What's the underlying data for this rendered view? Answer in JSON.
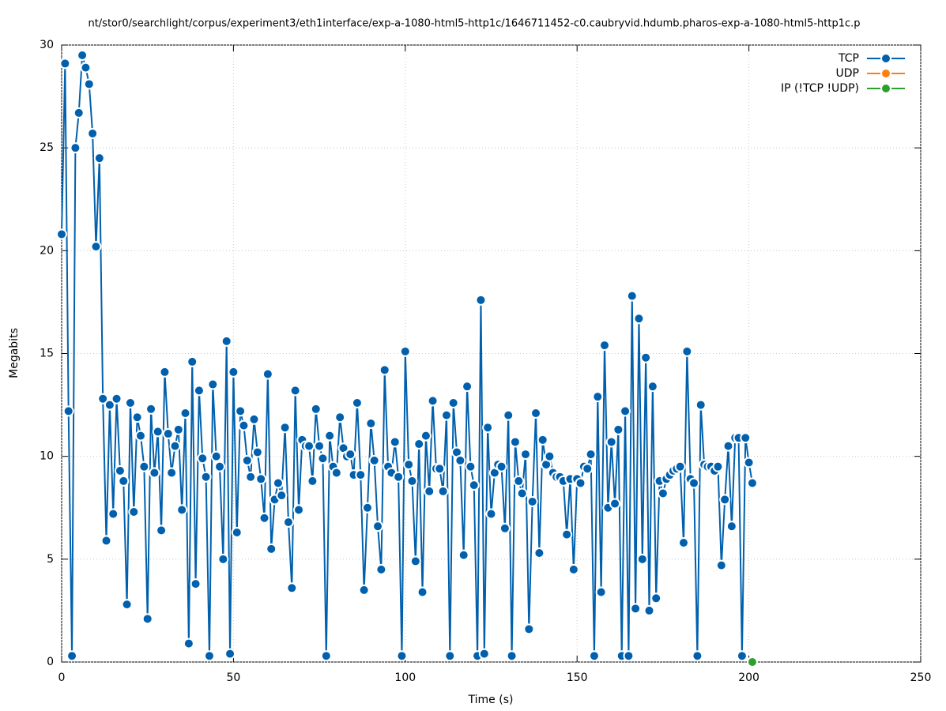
{
  "chart_data": {
    "type": "line",
    "title": "nt/stor0/searchlight/corpus/experiment3/eth1interface/exp-a-1080-html5-http1c/1646711452-c0.caubryvid.hdumb.pharos-exp-a-1080-html5-http1c.p",
    "x_label": "Time (s)",
    "y_label": "Megabits",
    "xlim": [
      0,
      250
    ],
    "xticks": [
      0,
      50,
      100,
      150,
      200,
      250
    ],
    "ylim": [
      0,
      30
    ],
    "yticks": [
      0,
      5,
      10,
      15,
      20,
      25,
      30
    ],
    "grid": true,
    "legend": "top-right",
    "series": [
      {
        "name": "TCP",
        "color": "#0060ad",
        "x": [
          0,
          1,
          2,
          3,
          4,
          5,
          6,
          7,
          8,
          9,
          10,
          11,
          12,
          13,
          14,
          15,
          16,
          17,
          18,
          19,
          20,
          21,
          22,
          23,
          24,
          25,
          26,
          27,
          28,
          29,
          30,
          31,
          32,
          33,
          34,
          35,
          36,
          37,
          38,
          39,
          40,
          41,
          42,
          43,
          44,
          45,
          46,
          47,
          48,
          49,
          50,
          51,
          52,
          53,
          54,
          55,
          56,
          57,
          58,
          59,
          60,
          61,
          62,
          63,
          64,
          65,
          66,
          67,
          68,
          69,
          70,
          71,
          72,
          73,
          74,
          75,
          76,
          77,
          78,
          79,
          80,
          81,
          82,
          83,
          84,
          85,
          86,
          87,
          88,
          89,
          90,
          91,
          92,
          93,
          94,
          95,
          96,
          97,
          98,
          99,
          100,
          101,
          102,
          103,
          104,
          105,
          106,
          107,
          108,
          109,
          110,
          111,
          112,
          113,
          114,
          115,
          116,
          117,
          118,
          119,
          120,
          121,
          122,
          123,
          124,
          125,
          126,
          127,
          128,
          129,
          130,
          131,
          132,
          133,
          134,
          135,
          136,
          137,
          138,
          139,
          140,
          141,
          142,
          143,
          144,
          145,
          146,
          147,
          148,
          149,
          150,
          151,
          152,
          153,
          154,
          155,
          156,
          157,
          158,
          159,
          160,
          161,
          162,
          163,
          164,
          165,
          166,
          167,
          168,
          169,
          170,
          171,
          172,
          173,
          174,
          175,
          176,
          177,
          178,
          179,
          180,
          181,
          182,
          183,
          184,
          185,
          186,
          187,
          188,
          189,
          190,
          191,
          192,
          193,
          194,
          195,
          196,
          197,
          198,
          199,
          200,
          201
        ],
        "values": [
          20.8,
          29.1,
          12.2,
          0.3,
          25.0,
          26.7,
          29.5,
          28.9,
          28.1,
          25.7,
          20.2,
          24.5,
          12.8,
          5.9,
          12.5,
          7.2,
          12.8,
          9.3,
          8.8,
          2.8,
          12.6,
          7.3,
          11.9,
          11.0,
          9.5,
          2.1,
          12.3,
          9.2,
          11.2,
          6.4,
          14.1,
          11.1,
          9.2,
          10.5,
          11.3,
          7.4,
          12.1,
          0.9,
          14.6,
          3.8,
          13.2,
          9.9,
          9.0,
          0.3,
          13.5,
          10.0,
          9.5,
          5.0,
          15.6,
          0.4,
          14.1,
          6.3,
          12.2,
          11.5,
          9.8,
          9.0,
          11.8,
          10.2,
          8.9,
          7.0,
          14.0,
          5.5,
          7.9,
          8.7,
          8.1,
          11.4,
          6.8,
          3.6,
          13.2,
          7.4,
          10.8,
          10.5,
          10.5,
          8.8,
          12.3,
          10.5,
          9.9,
          0.3,
          11.0,
          9.5,
          9.2,
          11.9,
          10.4,
          10.0,
          10.1,
          9.1,
          12.6,
          9.1,
          3.5,
          7.5,
          11.6,
          9.8,
          6.6,
          4.5,
          14.2,
          9.5,
          9.2,
          10.7,
          9.0,
          0.3,
          15.1,
          9.6,
          8.8,
          4.9,
          10.6,
          3.4,
          11.0,
          8.3,
          12.7,
          9.4,
          9.4,
          8.3,
          12.0,
          0.3,
          12.6,
          10.2,
          9.8,
          5.2,
          13.4,
          9.5,
          8.6,
          0.3,
          17.6,
          0.4,
          11.4,
          7.2,
          9.2,
          9.6,
          9.5,
          6.5,
          12.0,
          0.3,
          10.7,
          8.8,
          8.2,
          10.1,
          1.6,
          7.8,
          12.1,
          5.3,
          10.8,
          9.6,
          10.0,
          9.2,
          9.0,
          9.0,
          8.8,
          6.2,
          8.9,
          4.5,
          8.9,
          8.7,
          9.5,
          9.4,
          10.1,
          0.3,
          12.9,
          3.4,
          15.4,
          7.5,
          10.7,
          7.7,
          11.3,
          0.3,
          12.2,
          0.3,
          17.8,
          2.6,
          16.7,
          5.0,
          14.8,
          2.5,
          13.4,
          3.1,
          8.8,
          8.2,
          8.9,
          9.1,
          9.3,
          9.4,
          9.5,
          5.8,
          15.1,
          8.9,
          8.7,
          0.3,
          12.5,
          9.6,
          9.5,
          9.5,
          9.3,
          9.5,
          4.7,
          7.9,
          10.5,
          6.6,
          10.9,
          10.9,
          0.3,
          10.9,
          9.7,
          8.7
        ]
      },
      {
        "name": "UDP",
        "color": "#ff7f0e",
        "x": [],
        "values": []
      },
      {
        "name": "IP (!TCP  !UDP)",
        "color": "#2ca02c",
        "x": [
          201
        ],
        "values": [
          0
        ]
      }
    ]
  }
}
